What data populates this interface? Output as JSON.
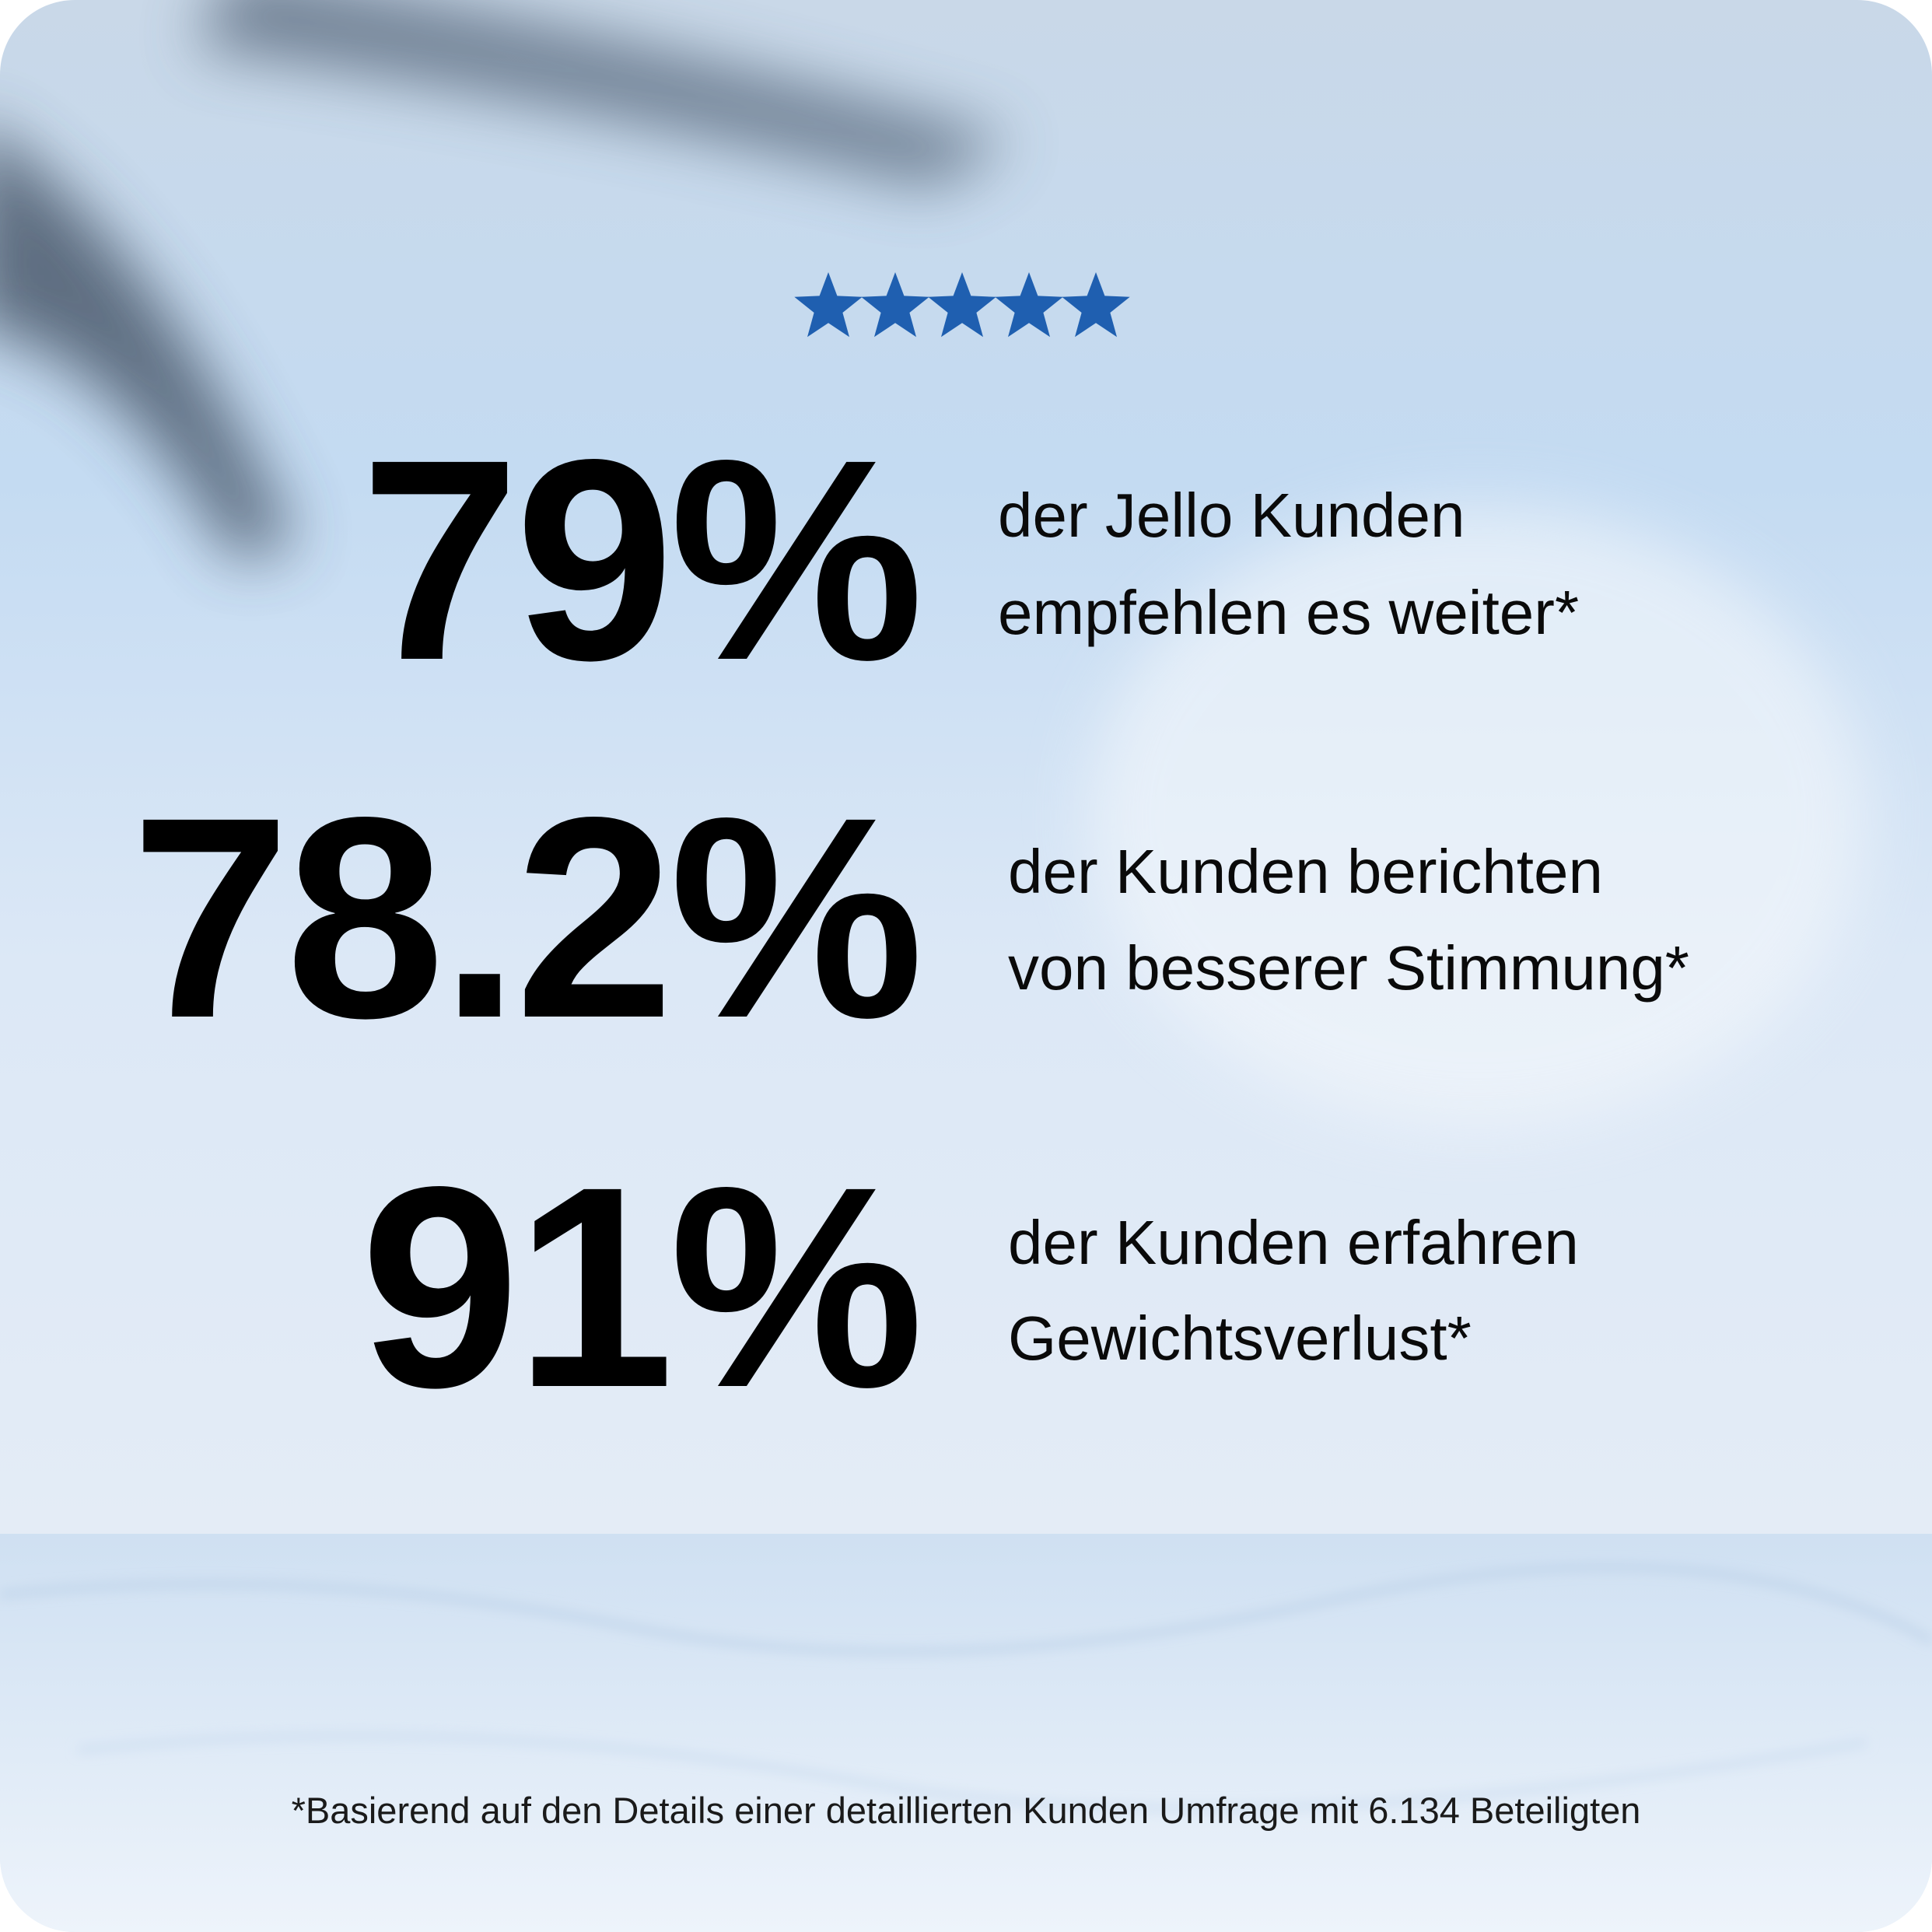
{
  "stats": [
    {
      "figure": "79%",
      "lines": [
        "der Jello Kunden",
        "empfehlen es weiter*"
      ]
    },
    {
      "figure": "78.2%",
      "lines": [
        "der Kunden berichten",
        "von besserer Stimmung*"
      ]
    },
    {
      "figure": "91%",
      "lines": [
        "der Kunden erfahren",
        "Gewichtsverlust*"
      ]
    }
  ],
  "footnote": "*Basierend auf den Details einer detaillierten Kunden Umfrage mit 6.134 Beteiligten"
}
